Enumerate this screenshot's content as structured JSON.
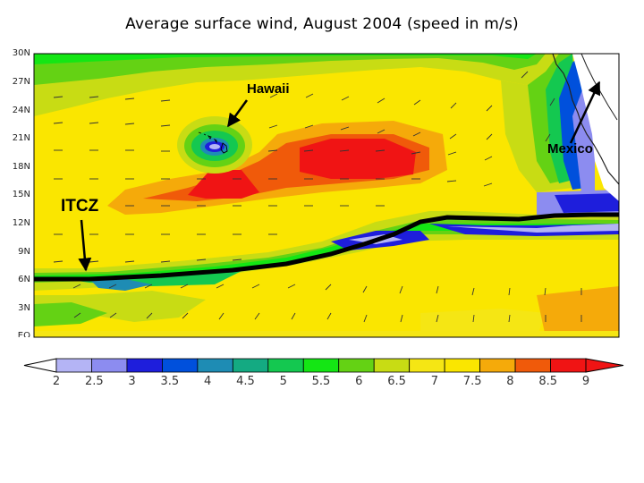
{
  "title": "Average surface wind, August 2004 (speed in m/s)",
  "map": {
    "latitude_labels": [
      "30N",
      "27N",
      "24N",
      "21N",
      "18N",
      "15N",
      "12N",
      "9N",
      "6N",
      "3N",
      "EQ"
    ],
    "annotations": {
      "hawaii": "Hawaii",
      "itcz": "ITCZ",
      "mexico": "Mexico"
    },
    "features": [
      "wind-speed-contours",
      "wind-vector-arrows",
      "itcz-line",
      "coastline"
    ]
  },
  "colorbar": {
    "labels": [
      "2",
      "2.5",
      "3",
      "3.5",
      "4",
      "4.5",
      "5",
      "5.5",
      "6",
      "6.5",
      "7",
      "7.5",
      "8",
      "8.5",
      "9"
    ],
    "colors": [
      "#b4b4f5",
      "#8c8cf0",
      "#1e1edc",
      "#0050dc",
      "#1e8cb4",
      "#14aa82",
      "#14c850",
      "#14e614",
      "#64d214",
      "#c8dc14",
      "#f5e614",
      "#fae600",
      "#f5aa0a",
      "#f05a0a",
      "#f01414"
    ],
    "under_color": "#ffffff",
    "over_color": "#f01414"
  }
}
